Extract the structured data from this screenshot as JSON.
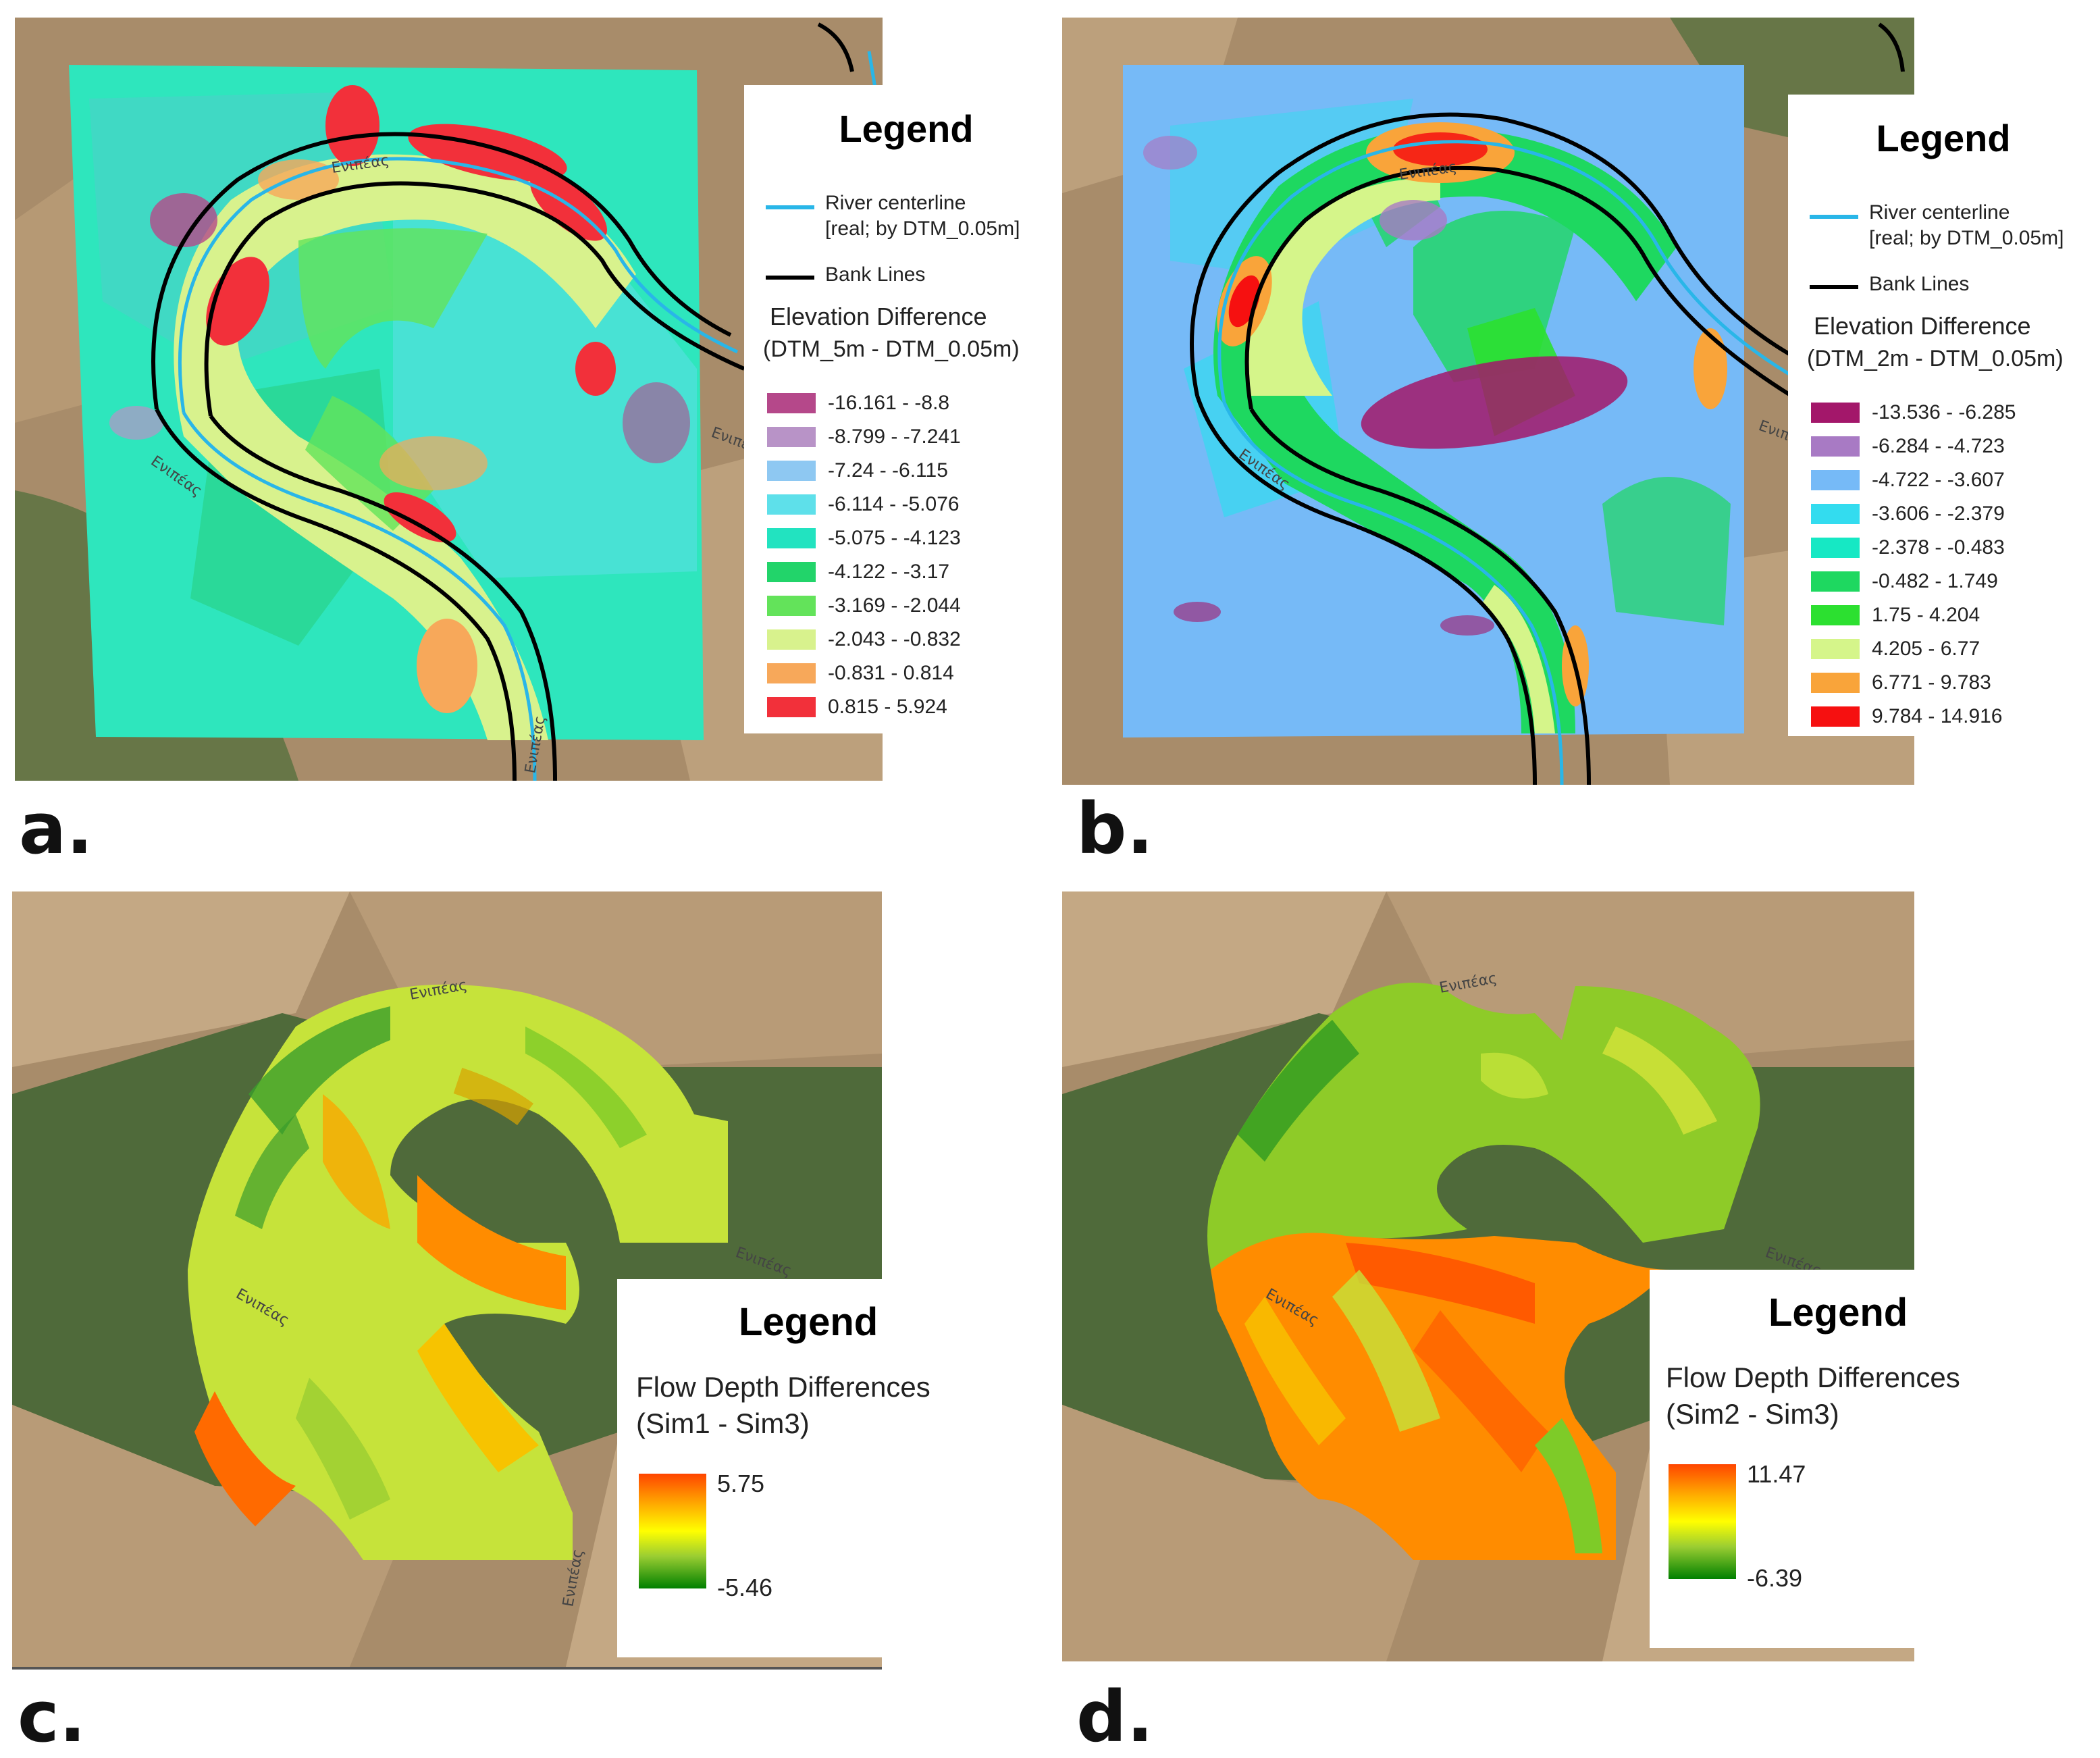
{
  "panels": {
    "a": {
      "label": "a.",
      "legend": {
        "title": "Legend",
        "river_label_1": "River centerline",
        "river_label_2": "[real; by DTM_0.05m]",
        "bank_label": "Bank Lines",
        "diff_title_1": "Elevation Difference",
        "diff_title_2": "(DTM_5m - DTM_0.05m)",
        "classes": [
          {
            "label": "-16.161 - -8.8",
            "color": "#b5488a"
          },
          {
            "label": "-8.799 - -7.241",
            "color": "#b893c7"
          },
          {
            "label": "-7.24 - -6.115",
            "color": "#8ec8f2"
          },
          {
            "label": "-6.114 - -5.076",
            "color": "#5ee0ea"
          },
          {
            "label": "-5.075 - -4.123",
            "color": "#22e3c0"
          },
          {
            "label": "-4.122 - -3.17",
            "color": "#22d46a"
          },
          {
            "label": "-3.169 - -2.044",
            "color": "#63e35a"
          },
          {
            "label": "-2.043 - -0.832",
            "color": "#d8f28d"
          },
          {
            "label": "-0.831 - 0.814",
            "color": "#f7a85a"
          },
          {
            "label": "0.815 - 5.924",
            "color": "#f2303a"
          }
        ]
      }
    },
    "b": {
      "label": "b.",
      "legend": {
        "title": "Legend",
        "river_label_1": "River centerline",
        "river_label_2": "[real; by DTM_0.05m]",
        "bank_label": "Bank Lines",
        "diff_title_1": "Elevation Difference",
        "diff_title_2": "(DTM_2m - DTM_0.05m)",
        "classes": [
          {
            "label": "-13.536 - -6.285",
            "color": "#a3176a"
          },
          {
            "label": "-6.284 - -4.723",
            "color": "#a87ac4"
          },
          {
            "label": "-4.722 - -3.607",
            "color": "#76baf7"
          },
          {
            "label": "-3.606 - -2.379",
            "color": "#33dcef"
          },
          {
            "label": "-2.378 - -0.483",
            "color": "#16e8c4"
          },
          {
            "label": "-0.482 - 1.749",
            "color": "#1ed860"
          },
          {
            "label": "1.75 - 4.204",
            "color": "#2ce030"
          },
          {
            "label": "4.205 - 6.77",
            "color": "#d5f58a"
          },
          {
            "label": "6.771 - 9.783",
            "color": "#f9a43a"
          },
          {
            "label": "9.784 - 14.916",
            "color": "#f61010"
          }
        ]
      }
    },
    "c": {
      "label": "c.",
      "legend": {
        "title": "Legend",
        "diff_title_1": "Flow Depth Differences",
        "diff_title_2": "(Sim1 - Sim3)",
        "max": "5.75",
        "min": "-5.46"
      }
    },
    "d": {
      "label": "d.",
      "legend": {
        "title": "Legend",
        "diff_title_1": "Flow Depth Differences",
        "diff_title_2": "(Sim2 - Sim3)",
        "max": "11.47",
        "min": "-6.39"
      }
    }
  },
  "road_label": "Ενιπέας",
  "colors": {
    "river": "#29b6e8",
    "bank": "#000000",
    "background_field": "#b89b77",
    "vegetation": "#4f6a3a"
  }
}
